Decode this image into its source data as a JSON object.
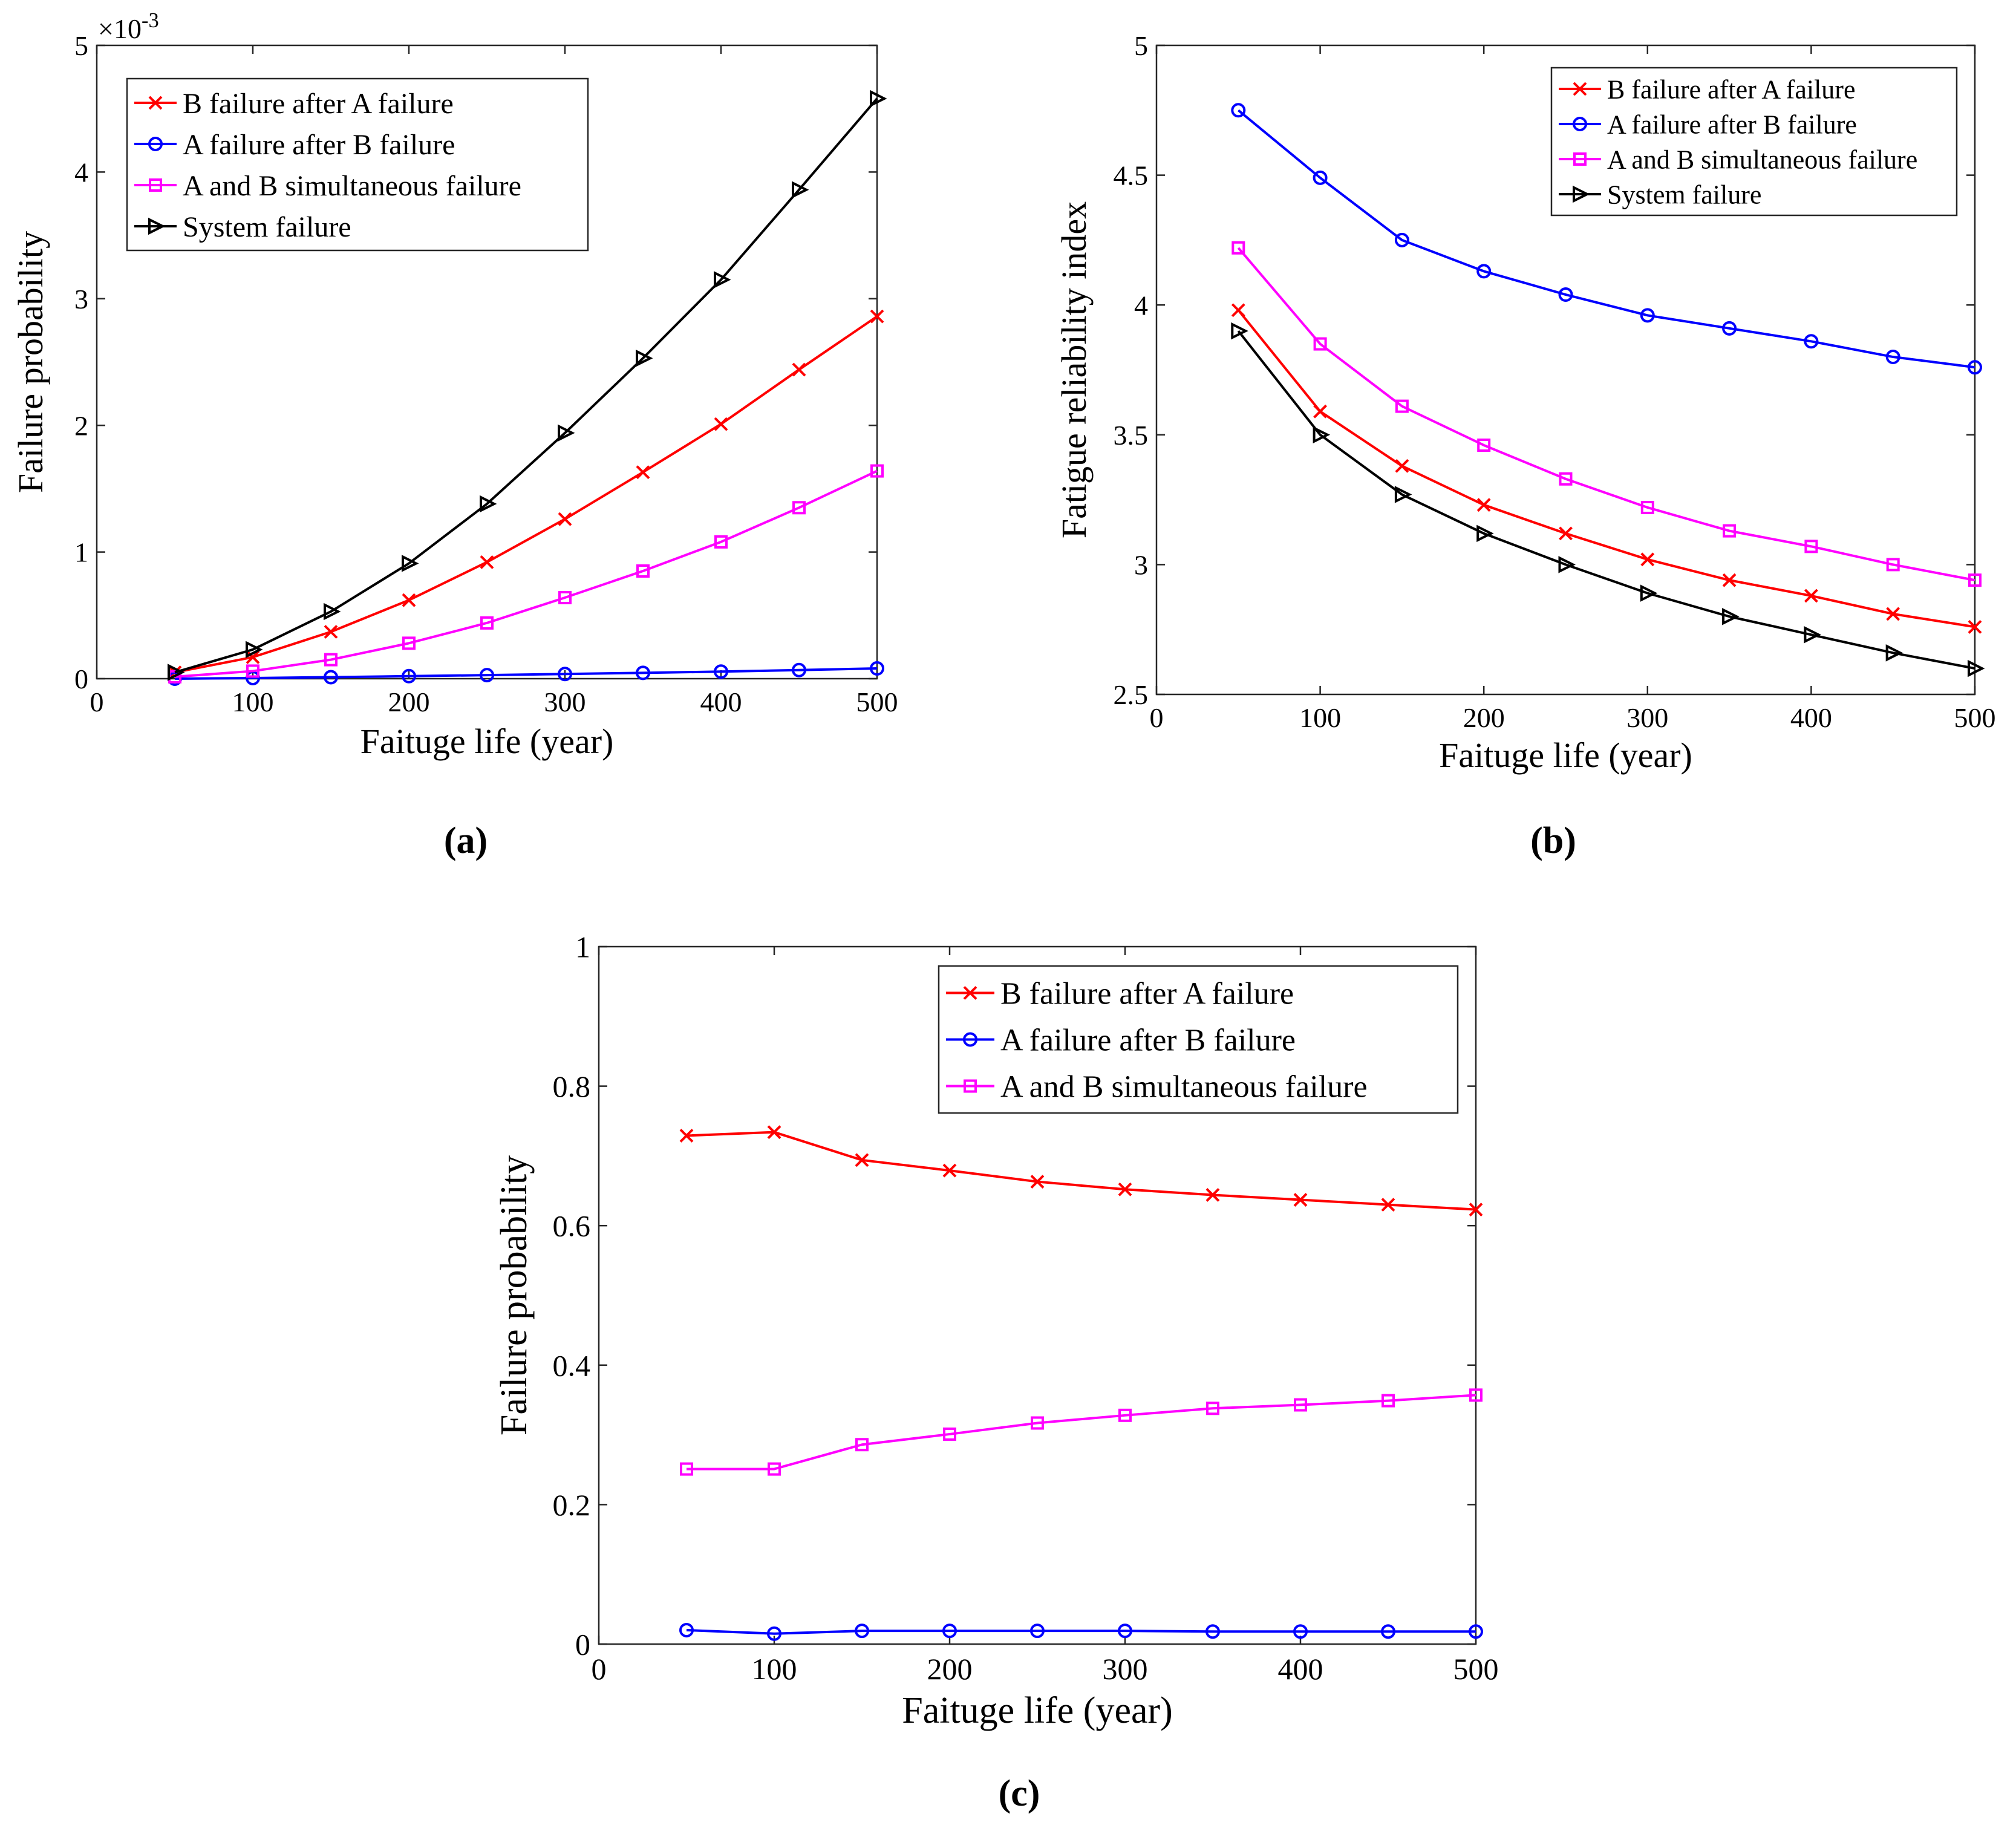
{
  "chart_data": [
    {
      "type": "line",
      "panel_label": "(a)",
      "xlabel": "Faituge life (year)",
      "ylabel": "Failure probability",
      "exponent_label": "×10",
      "exponent_value": "-3",
      "xlim": [
        0,
        500
      ],
      "ylim": [
        0,
        5
      ],
      "xticks": [
        "0",
        "100",
        "200",
        "300",
        "400",
        "500"
      ],
      "yticks": [
        "0",
        "1",
        "2",
        "3",
        "4",
        "5"
      ],
      "legend_position": "top-left",
      "x": [
        50,
        100,
        150,
        200,
        250,
        300,
        350,
        400,
        450,
        500
      ],
      "series": [
        {
          "name": "B failure after A failure",
          "color": "#ff0000",
          "marker": "x",
          "values": [
            0.05,
            0.17,
            0.37,
            0.62,
            0.92,
            1.26,
            1.63,
            2.01,
            2.44,
            2.86
          ]
        },
        {
          "name": "A failure after B failure",
          "color": "#0000ff",
          "marker": "o",
          "values": [
            0.0,
            0.005,
            0.012,
            0.02,
            0.028,
            0.037,
            0.046,
            0.056,
            0.068,
            0.081
          ]
        },
        {
          "name": "A and B simultaneous failure",
          "color": "#ff00ff",
          "marker": "s",
          "values": [
            0.015,
            0.06,
            0.15,
            0.28,
            0.44,
            0.64,
            0.85,
            1.08,
            1.35,
            1.64
          ]
        },
        {
          "name": "System failure",
          "color": "#000000",
          "marker": ">",
          "values": [
            0.05,
            0.23,
            0.53,
            0.91,
            1.38,
            1.94,
            2.53,
            3.15,
            3.86,
            4.58
          ]
        }
      ]
    },
    {
      "type": "line",
      "panel_label": "(b)",
      "xlabel": "Faituge life (year)",
      "ylabel": "Fatigue reliability index",
      "xlim": [
        0,
        500
      ],
      "ylim": [
        2.5,
        5
      ],
      "xticks": [
        "0",
        "100",
        "200",
        "300",
        "400",
        "500"
      ],
      "yticks": [
        "2.5",
        "3",
        "3.5",
        "4",
        "4.5",
        "5"
      ],
      "legend_position": "top-right",
      "x": [
        50,
        100,
        150,
        200,
        250,
        300,
        350,
        400,
        450,
        500
      ],
      "series": [
        {
          "name": "B failure after A failure",
          "color": "#ff0000",
          "marker": "x",
          "values": [
            3.98,
            3.59,
            3.38,
            3.23,
            3.12,
            3.02,
            2.94,
            2.88,
            2.81,
            2.76
          ]
        },
        {
          "name": "A failure after B failure",
          "color": "#0000ff",
          "marker": "o",
          "values": [
            4.75,
            4.49,
            4.25,
            4.13,
            4.04,
            3.96,
            3.91,
            3.86,
            3.8,
            3.76
          ]
        },
        {
          "name": "A and B simultaneous failure",
          "color": "#ff00ff",
          "marker": "s",
          "values": [
            4.22,
            3.85,
            3.61,
            3.46,
            3.33,
            3.22,
            3.13,
            3.07,
            3.0,
            2.94
          ]
        },
        {
          "name": "System failure",
          "color": "#000000",
          "marker": ">",
          "values": [
            3.9,
            3.5,
            3.27,
            3.12,
            3.0,
            2.89,
            2.8,
            2.73,
            2.66,
            2.6
          ]
        }
      ]
    },
    {
      "type": "line",
      "panel_label": "(c)",
      "xlabel": "Faituge life (year)",
      "ylabel": "Failure probability",
      "xlim": [
        0,
        500
      ],
      "ylim": [
        0,
        1
      ],
      "xticks": [
        "0",
        "100",
        "200",
        "300",
        "400",
        "500"
      ],
      "yticks": [
        "0",
        "0.2",
        "0.4",
        "0.6",
        "0.8",
        "1"
      ],
      "legend_position": "top-right",
      "x": [
        50,
        100,
        150,
        200,
        250,
        300,
        350,
        400,
        450,
        500
      ],
      "series": [
        {
          "name": "B failure after A failure",
          "color": "#ff0000",
          "marker": "x",
          "values": [
            0.729,
            0.734,
            0.694,
            0.679,
            0.663,
            0.652,
            0.644,
            0.637,
            0.63,
            0.623
          ]
        },
        {
          "name": "A failure after B failure",
          "color": "#0000ff",
          "marker": "o",
          "values": [
            0.02,
            0.015,
            0.019,
            0.019,
            0.019,
            0.019,
            0.018,
            0.018,
            0.018,
            0.018
          ]
        },
        {
          "name": "A and B simultaneous failure",
          "color": "#ff00ff",
          "marker": "s",
          "values": [
            0.251,
            0.251,
            0.286,
            0.301,
            0.317,
            0.328,
            0.338,
            0.343,
            0.349,
            0.357
          ]
        }
      ]
    }
  ]
}
